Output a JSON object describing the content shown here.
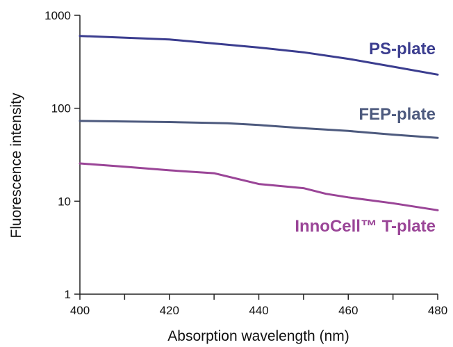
{
  "chart_data": {
    "type": "line",
    "title": "",
    "xlabel": "Absorption wavelength (nm)",
    "ylabel": "Fluorescence intensity",
    "x_ticks": [
      400,
      420,
      440,
      460,
      480
    ],
    "x_minor_ticks": [
      410,
      430,
      450,
      470
    ],
    "y_ticks": [
      1,
      10,
      100,
      1000
    ],
    "y_tick_labels": [
      "1",
      "10",
      "100",
      "1000"
    ],
    "xlim": [
      400,
      480
    ],
    "ylim": [
      1,
      1000
    ],
    "y_scale": "log",
    "grid": false,
    "legend": "none",
    "series": [
      {
        "name": "PS-plate",
        "color": "#3b3d8f",
        "points": [
          [
            400,
            600
          ],
          [
            420,
            550
          ],
          [
            440,
            450
          ],
          [
            450,
            400
          ],
          [
            460,
            340
          ],
          [
            470,
            280
          ],
          [
            480,
            230
          ]
        ]
      },
      {
        "name": "FEP-plate",
        "color": "#4d5a7e",
        "points": [
          [
            400,
            73
          ],
          [
            420,
            71
          ],
          [
            433,
            69
          ],
          [
            440,
            66
          ],
          [
            450,
            61
          ],
          [
            460,
            57
          ],
          [
            470,
            52
          ],
          [
            480,
            48
          ]
        ]
      },
      {
        "name": "InnoCell™ T-plate",
        "color": "#9a4597",
        "points": [
          [
            400,
            25.5
          ],
          [
            410,
            23.5
          ],
          [
            420,
            21.5
          ],
          [
            430,
            20
          ],
          [
            440,
            15.3
          ],
          [
            450,
            13.8
          ],
          [
            455,
            12
          ],
          [
            460,
            11
          ],
          [
            470,
            9.5
          ],
          [
            480,
            8
          ]
        ]
      }
    ]
  }
}
